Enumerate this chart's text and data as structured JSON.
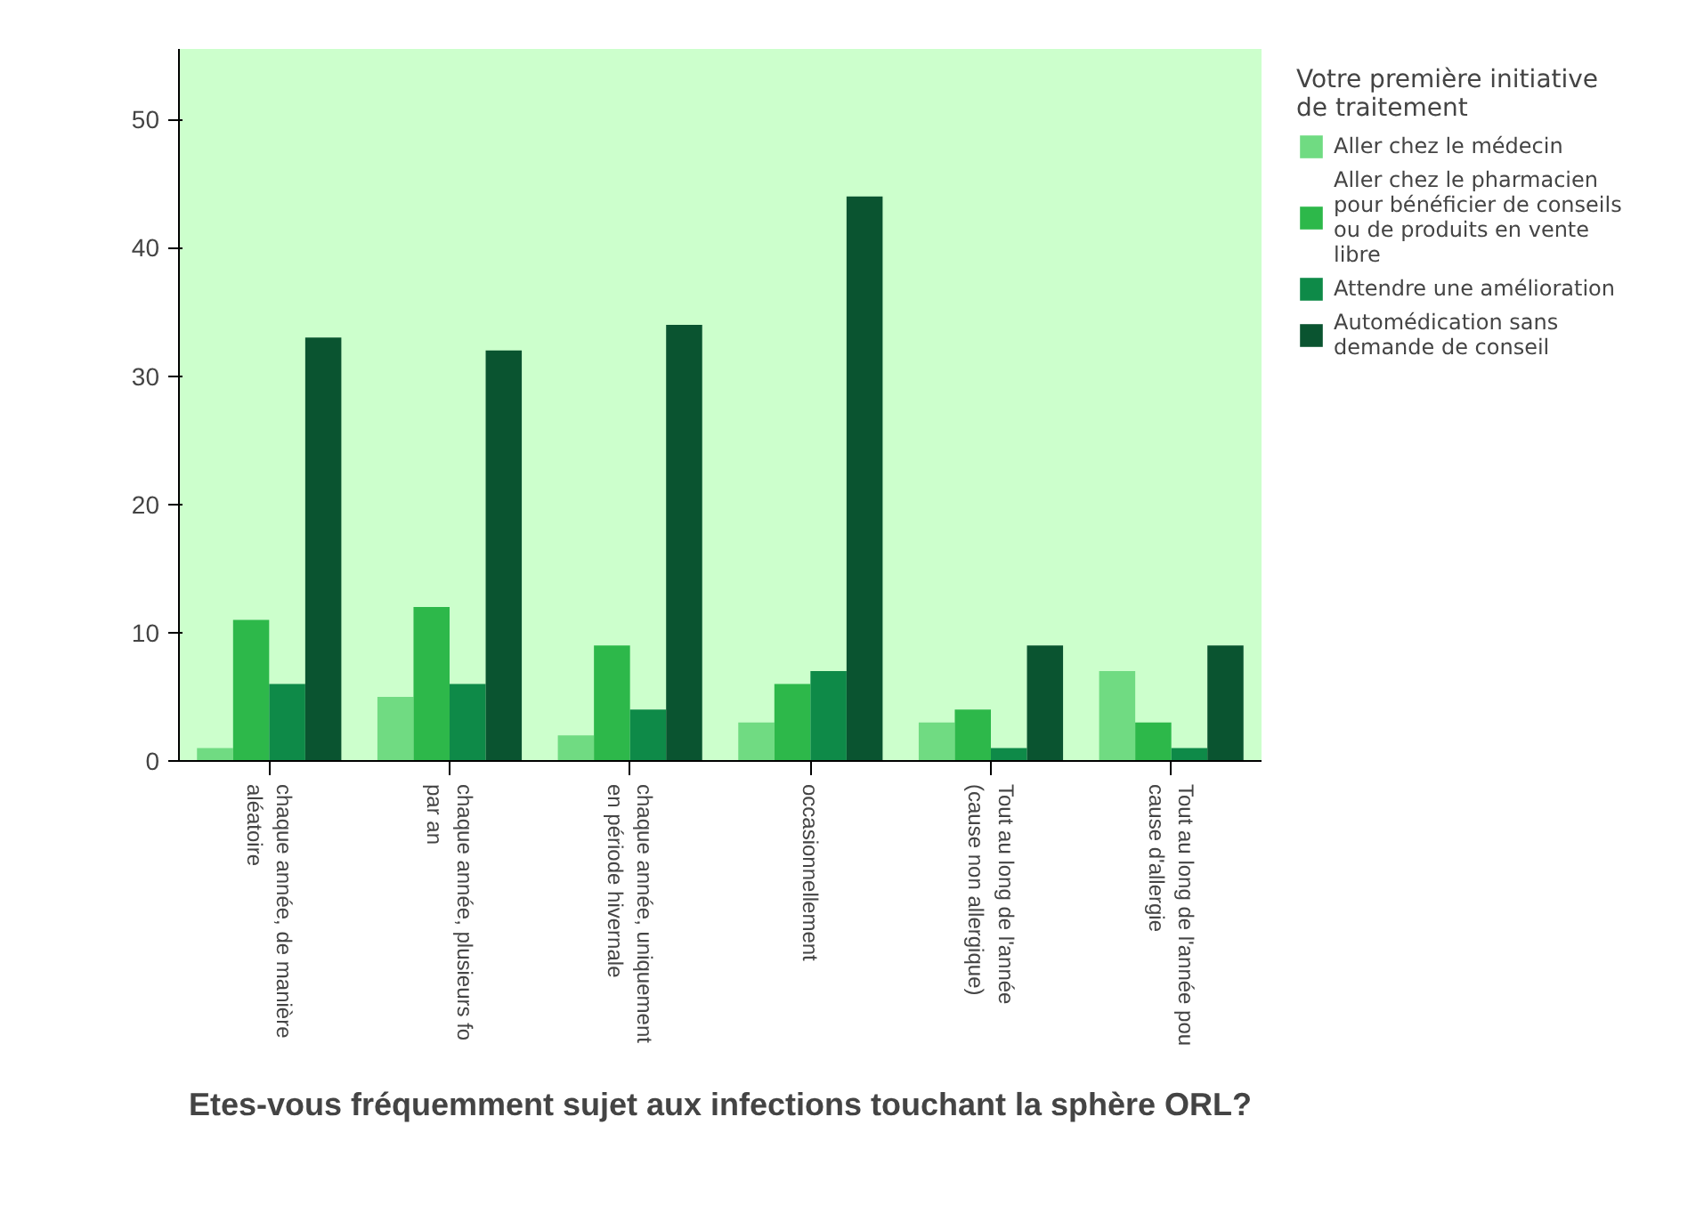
{
  "chart_data": {
    "type": "bar",
    "xlabel": "Etes-vous fréquemment sujet aux infections touchant la sphère ORL?",
    "categories": [
      "chaque année, de manière\naléatoire",
      "chaque année, plusieurs fo\npar an",
      "chaque année, uniquement\nen période hivernale",
      "occasionnellement",
      "Tout au long de l'année\n(cause non allergique)",
      "Tout au long de l'année pou\ncause d'allergie"
    ],
    "legend_title": "Votre première initiative\nde traitement",
    "series": [
      {
        "name": "Aller chez le médecin",
        "color": "#70db82",
        "values": [
          1,
          5,
          2,
          3,
          3,
          7
        ]
      },
      {
        "name": "Aller chez le pharmacien\npour bénéficier de conseils\nou de produits en vente\nlibre",
        "color": "#2db84a",
        "values": [
          11,
          12,
          9,
          6,
          4,
          3
        ]
      },
      {
        "name": "Attendre une amélioration",
        "color": "#0e8a48",
        "values": [
          6,
          6,
          4,
          7,
          1,
          1
        ]
      },
      {
        "name": "Automédication sans\ndemande de conseil",
        "color": "#0a5430",
        "values": [
          33,
          32,
          34,
          44,
          9,
          9
        ]
      }
    ],
    "ylim": [
      0,
      55.5
    ],
    "yticks": [
      0,
      10,
      20,
      30,
      40,
      50
    ],
    "grid": false,
    "legend": "top right"
  }
}
